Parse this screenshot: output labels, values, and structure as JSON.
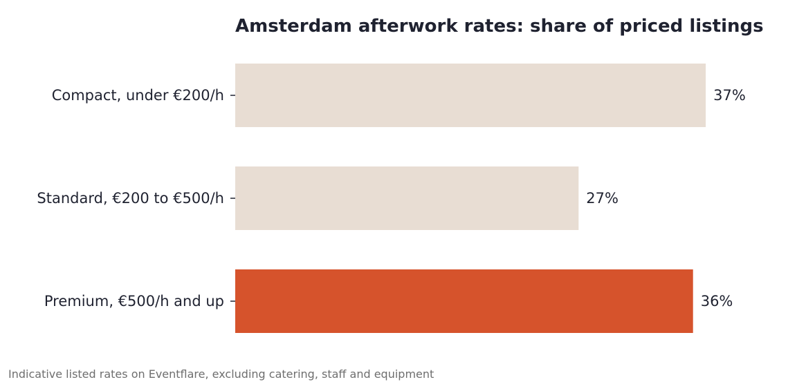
{
  "chart_data": {
    "type": "bar",
    "orientation": "horizontal",
    "title": "Amsterdam afterwork rates: share of priced listings",
    "categories": [
      "Compact, under €200/h",
      "Standard, €200 to €500/h",
      "Premium, €500/h and up"
    ],
    "values": [
      37,
      27,
      36
    ],
    "value_labels": [
      "37%",
      "27%",
      "36%"
    ],
    "unit": "%",
    "xlim": [
      0,
      42
    ],
    "highlight_index": 2,
    "colors": {
      "default_bar": "#e8ddd3",
      "highlight_bar": "#d6532c",
      "text": "#1f2230",
      "footnote": "#6e6e6e"
    },
    "grid": false,
    "legend": "none",
    "footnote": "Indicative listed rates on Eventflare, excluding catering, staff and equipment"
  }
}
